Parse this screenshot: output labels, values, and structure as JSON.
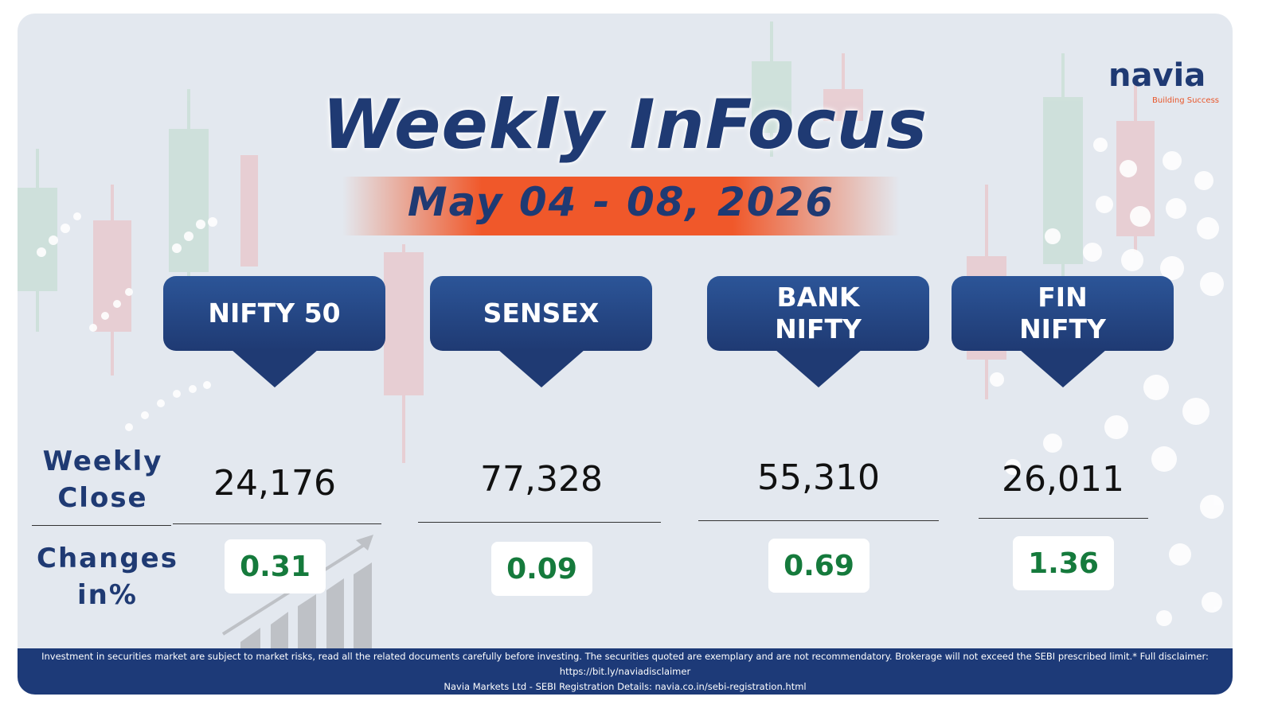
{
  "brand": {
    "name": "navia",
    "tagline": "Building Success"
  },
  "header": {
    "title": "Weekly InFocus",
    "date_range": "May 04 - 08, 2026"
  },
  "row_labels": {
    "close": "Weekly Close",
    "change": "Changes in%"
  },
  "indices": [
    {
      "name": "NIFTY 50",
      "close": "24,176",
      "change": "0.31"
    },
    {
      "name": "SENSEX",
      "close": "77,328",
      "change": "0.09"
    },
    {
      "name": "BANK NIFTY",
      "close": "55,310",
      "change": "0.69"
    },
    {
      "name": "FIN NIFTY",
      "close": "26,011",
      "change": "1.36"
    }
  ],
  "footer": {
    "disclaimer": "Investment in securities market are subject to market risks, read all the related documents carefully before investing. The securities quoted are exemplary and are not recommendatory. Brokerage will not exceed the SEBI prescribed limit.* Full disclaimer: https://bit.ly/naviadisclaimer",
    "registration": "Navia Markets Ltd - SEBI Registration Details: navia.co.in/sebi-registration.html"
  }
}
